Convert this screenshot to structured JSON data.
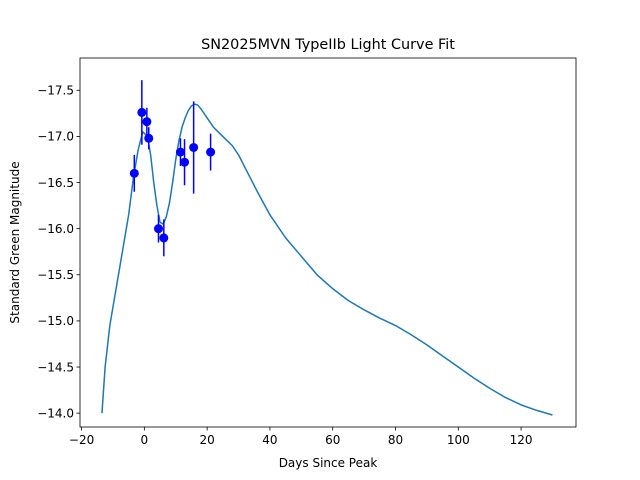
{
  "chart_data": {
    "type": "line",
    "title": "SN2025MVN TypeIIb Light Curve Fit",
    "xlabel": "Days Since Peak",
    "ylabel": "Standard Green Magnitude",
    "xlim": [
      -20.5,
      137.5
    ],
    "ylim": [
      -13.85,
      -17.85
    ],
    "y_inverted": true,
    "x_ticks": [
      -20,
      0,
      20,
      40,
      60,
      80,
      100,
      120
    ],
    "x_tick_labels": [
      "−20",
      "0",
      "20",
      "40",
      "60",
      "80",
      "100",
      "120"
    ],
    "y_ticks": [
      -17.5,
      -17.0,
      -16.5,
      -16.0,
      -15.5,
      -15.0,
      -14.5,
      -14.0
    ],
    "y_tick_labels": [
      "−17.5",
      "−17.0",
      "−16.5",
      "−16.0",
      "−15.5",
      "−15.0",
      "−14.5",
      "−14.0"
    ],
    "grid": false,
    "series": [
      {
        "kind": "line",
        "color": "#1f77b4",
        "x": [
          -13.5,
          -12.5,
          -11,
          -9,
          -7,
          -5,
          -3.5,
          -2,
          -0.5,
          1,
          2,
          3,
          4,
          5,
          6,
          7,
          8,
          9,
          10,
          11,
          12,
          13,
          14,
          15,
          16,
          17,
          18,
          20,
          22,
          25,
          28,
          30,
          33,
          36,
          40,
          45,
          50,
          55,
          60,
          65,
          70,
          75,
          80,
          85,
          90,
          95,
          100,
          105,
          110,
          115,
          120,
          125,
          130
        ],
        "y": [
          -14.0,
          -14.5,
          -14.95,
          -15.35,
          -15.75,
          -16.15,
          -16.55,
          -16.85,
          -17.05,
          -17.0,
          -16.8,
          -16.5,
          -16.25,
          -16.07,
          -16.05,
          -16.13,
          -16.28,
          -16.5,
          -16.75,
          -16.95,
          -17.1,
          -17.2,
          -17.28,
          -17.33,
          -17.35,
          -17.34,
          -17.3,
          -17.2,
          -17.1,
          -17.0,
          -16.9,
          -16.8,
          -16.6,
          -16.4,
          -16.15,
          -15.9,
          -15.7,
          -15.5,
          -15.35,
          -15.22,
          -15.12,
          -15.03,
          -14.95,
          -14.85,
          -14.74,
          -14.62,
          -14.5,
          -14.38,
          -14.27,
          -14.17,
          -14.09,
          -14.03,
          -13.98
        ]
      },
      {
        "kind": "errorbar",
        "color": "#0000ff",
        "x": [
          -3.2,
          -0.8,
          0.8,
          1.4,
          4.5,
          6.2,
          11.5,
          12.8,
          15.7,
          21.1
        ],
        "y": [
          -16.6,
          -17.26,
          -17.16,
          -16.98,
          -16.0,
          -15.9,
          -16.83,
          -16.72,
          -16.88,
          -16.83
        ],
        "yerr": [
          0.2,
          0.35,
          0.15,
          0.12,
          0.15,
          0.2,
          0.15,
          0.25,
          0.5,
          0.2
        ]
      }
    ]
  }
}
